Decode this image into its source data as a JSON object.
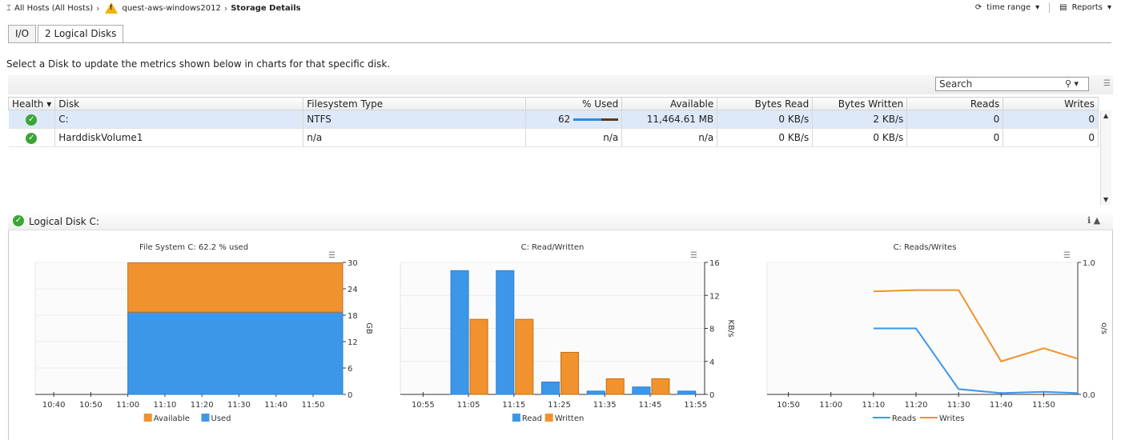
{
  "breadcrumb": {
    "root": "All Hosts (All Hosts)",
    "host": "quest-aws-windows2012",
    "current": "Storage Details"
  },
  "toolbar": {
    "time_range": "time range",
    "reports": "Reports"
  },
  "tabs": [
    {
      "label": "I/O"
    },
    {
      "label": "2 Logical Disks"
    }
  ],
  "instruction": "Select a Disk to update the metrics shown below in charts for that specific disk.",
  "search": {
    "placeholder": "Search"
  },
  "table": {
    "headers": [
      "Health",
      "Disk",
      "Filesystem Type",
      "% Used",
      "Available",
      "Bytes Read",
      "Bytes Written",
      "Reads",
      "Writes"
    ],
    "rows": [
      {
        "disk": "C:",
        "fs": "NTFS",
        "used": "62",
        "used_fraction": 0.62,
        "available": "11,464.61 MB",
        "bytes_read": "0 KB/s",
        "bytes_written": "2 KB/s",
        "reads": "0",
        "writes": "0"
      },
      {
        "disk": "HarddiskVolume1",
        "fs": "n/a",
        "used": "n/a",
        "available": "n/a",
        "bytes_read": "0 KB/s",
        "bytes_written": "0 KB/s",
        "reads": "0",
        "writes": "0"
      }
    ]
  },
  "panel": {
    "title": "Logical Disk C:"
  },
  "colors": {
    "orange": "#f0922e",
    "blue": "#3d97e8",
    "ok_green": "#3aa635"
  },
  "chart_data": [
    {
      "type": "area",
      "title": "File System C: 62.2 % used",
      "ylabel": "GB",
      "ylim": [
        0,
        30
      ],
      "yticks": [
        0,
        6,
        12,
        18,
        24,
        30
      ],
      "xticks": [
        "10:40",
        "10:50",
        "11:00",
        "11:10",
        "11:20",
        "11:30",
        "11:40",
        "11:50"
      ],
      "x_start": "11:00",
      "x_end": "11:58",
      "series": [
        {
          "name": "Used",
          "value": 18.7
        },
        {
          "name": "Available",
          "value": 11.2
        }
      ],
      "legend": [
        "Available",
        "Used"
      ]
    },
    {
      "type": "bar",
      "title": "C: Read/Written",
      "ylabel": "KB/s",
      "ylim": [
        0,
        16
      ],
      "yticks": [
        0,
        4,
        8,
        12,
        16
      ],
      "xticks": [
        "10:55",
        "11:05",
        "11:15",
        "11:25",
        "11:35",
        "11:45",
        "11:55"
      ],
      "categories": [
        "11:05",
        "11:15",
        "11:25",
        "11:35",
        "11:45",
        "11:55"
      ],
      "series": [
        {
          "name": "Read",
          "values": [
            15.0,
            15.0,
            1.5,
            0.4,
            0.9,
            0.4
          ]
        },
        {
          "name": "Written",
          "values": [
            9.1,
            9.1,
            5.1,
            1.9,
            1.9,
            0
          ]
        }
      ],
      "legend": [
        "Read",
        "Written"
      ]
    },
    {
      "type": "line",
      "title": "C: Reads/Writes",
      "ylabel": "o/s",
      "ylim": [
        0,
        1.0
      ],
      "yticks": [
        "0.0",
        "1.0"
      ],
      "xticks": [
        "10:50",
        "11:00",
        "11:10",
        "11:20",
        "11:30",
        "11:40",
        "11:50"
      ],
      "x": [
        "11:10",
        "11:20",
        "11:30",
        "11:40",
        "11:50",
        "11:58"
      ],
      "series": [
        {
          "name": "Reads",
          "values": [
            0.5,
            0.5,
            0.04,
            0.01,
            0.02,
            0.01
          ]
        },
        {
          "name": "Writes",
          "values": [
            0.78,
            0.79,
            0.79,
            0.25,
            0.35,
            0.27
          ]
        }
      ],
      "legend": [
        "Reads",
        "Writes"
      ]
    }
  ]
}
